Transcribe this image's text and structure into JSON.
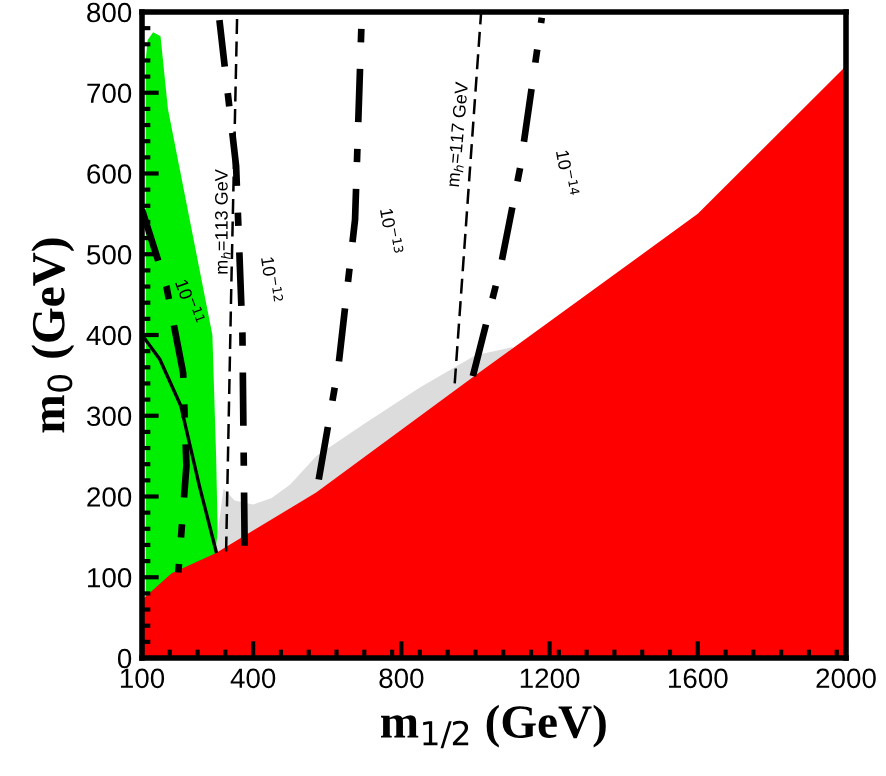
{
  "chart_data": {
    "type": "line",
    "xlabel": "m$_{1/2}$ (GeV)",
    "ylabel": "m$_{0}$ (GeV)",
    "xlim": [
      100,
      2000
    ],
    "xticks": [
      100,
      400,
      800,
      1200,
      1600,
      2000
    ],
    "ylim": [
      0,
      800
    ],
    "yticks": [
      0,
      100,
      200,
      300,
      400,
      500,
      600,
      700,
      800
    ],
    "grid": false,
    "legend": false,
    "series": [
      {
        "type": "area",
        "color": "#00ee00",
        "x": [
          110,
          115,
          130,
          150,
          170,
          200,
          230,
          260,
          290,
          300,
          305
        ],
        "values": [
          740,
          765,
          775,
          770,
          680,
          610,
          540,
          470,
          400,
          250,
          140
        ]
      },
      {
        "type": "area",
        "color": "#dcdcdc",
        "x": [
          300,
          320,
          350,
          400,
          450,
          500,
          570,
          700,
          850,
          1000,
          1100
        ],
        "values": [
          140,
          210,
          195,
          190,
          198,
          215,
          250,
          290,
          335,
          375,
          385
        ]
      },
      {
        "type": "area",
        "color": "#ff0000",
        "x": [
          100,
          180,
          300,
          570,
          1000,
          1600,
          2000
        ],
        "values": [
          72,
          105,
          130,
          205,
          350,
          550,
          733
        ]
      },
      {
        "color": "#000000",
        "line_style": "solid",
        "x": [
          100,
          148,
          205,
          255,
          300
        ],
        "values": [
          400,
          370,
          312,
          213,
          132
        ]
      },
      {
        "color": "#000000",
        "line_style": "dashdot",
        "x": [
          100,
          166,
          211,
          220,
          198
        ],
        "values": [
          555,
          460,
          353,
          238,
          106
        ]
      },
      {
        "color": "#000000",
        "line_style": "dashed",
        "x": [
          327,
          341,
          357
        ],
        "values": [
          132,
          460,
          800
        ]
      },
      {
        "color": "#000000",
        "line_style": "dashdot",
        "x": [
          377,
          371,
          354,
          309
        ],
        "values": [
          139,
          402,
          609,
          790
        ]
      },
      {
        "color": "#000000",
        "line_style": "dashdot",
        "x": [
          577,
          630,
          675,
          693
        ],
        "values": [
          221,
          361,
          543,
          794
        ]
      },
      {
        "color": "#000000",
        "line_style": "dashed",
        "x": [
          944,
          1015
        ],
        "values": [
          340,
          798
        ]
      },
      {
        "color": "#000000",
        "line_style": "dashdot",
        "x": [
          993,
          1068,
          1121,
          1179
        ],
        "values": [
          349,
          485,
          608,
          793
        ]
      }
    ],
    "annotations": [
      "10$^{−11}$",
      "m$_{h}$=113 GeV",
      "10$^{−12}$",
      "10$^{−13}$",
      "m$_{h}$=117 GeV",
      "10$^{−14}$"
    ]
  }
}
